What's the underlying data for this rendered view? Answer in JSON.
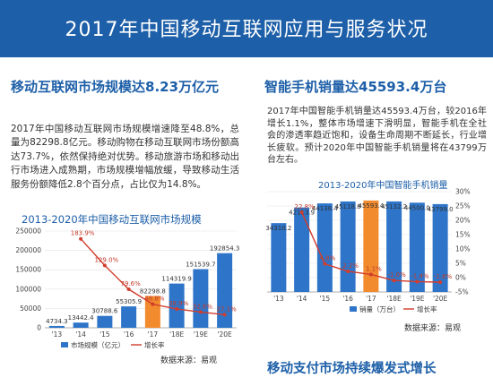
{
  "header": {
    "title": "2017年中国移动互联网应用与服务状况"
  },
  "left": {
    "heading": "移动互联网市场规模达8.23万亿元",
    "paragraph": "2017年中国移动互联网市场规模增速降至48.8%，总量为82298.8亿元。移动购物在移动互联网市场份额高达73.7%，依然保持绝对优势。移动旅游市场和移动出行市场进入成熟期，市场规模增幅放缓，导致移动生活服务份额降低2.8个百分点，占比仅为14.8%。",
    "source": "数据来源：易观"
  },
  "right": {
    "heading": "智能手机销量达45593.4万台",
    "paragraph": "2017年中国智能手机销量达45593.4万台，较2016年增长1.1%，整体市场增速下滑明显，智能手机在全社会的渗透率趋近饱和，设备生命周期不断延长，行业增长疲软。预计2020年中国智能手机销量将在43799万台左右。",
    "source": "数据来源：易观"
  },
  "bottom": {
    "heading": "移动支付市场持续爆发式增长"
  },
  "colors": {
    "brand": "#1d5fa8",
    "bar": "#2e75c9",
    "highlight": "#f28a2e",
    "line": "#d13c2c"
  },
  "chart_data": [
    {
      "type": "bar",
      "title": "2013-2020年中国移动互联网市场规模",
      "categories": [
        "'13",
        "'14",
        "'15",
        "'16",
        "'17",
        "'18E",
        "'19E",
        "'20E"
      ],
      "highlight_index": 4,
      "ylim": [
        0,
        250000
      ],
      "yticks": [
        "0",
        "50000",
        "100000",
        "150000",
        "200000",
        "250000"
      ],
      "y2lim": [
        0,
        200
      ],
      "series": [
        {
          "axis": "left",
          "values": [
            4734.3,
            13442.4,
            30788.6,
            55305.9,
            82298.8,
            114319.9,
            151539.7,
            192854.3
          ],
          "labels": [
            "4734.3",
            "13442.4",
            "30788.6",
            "55305.9",
            "82298.8",
            "114319.9",
            "151539.7",
            "192854.3"
          ]
        },
        {
          "axis": "right",
          "values": [
            null,
            183.9,
            129.0,
            79.6,
            48.8,
            38.9,
            32.6,
            27.1
          ],
          "labels": [
            "",
            "183.9%",
            "129.0%",
            "79.6%",
            "48.8%",
            "38.9%",
            "32.6%",
            "27.1%"
          ]
        }
      ],
      "legend": [
        "市场规模（亿元）",
        "增长率"
      ],
      "legend_position": "bottom"
    },
    {
      "type": "bar",
      "title": "2013-2020年中国智能手机销量",
      "categories": [
        "'13",
        "'14",
        "'15",
        "'16",
        "'17",
        "'18E",
        "'19E",
        "'20E"
      ],
      "highlight_index": 4,
      "ylim": [
        0,
        50000
      ],
      "y2lim": [
        -0.05,
        0.3
      ],
      "y2ticks": [
        "30%",
        "25%",
        "20%",
        "15%",
        "10%",
        "5%",
        "0%",
        "-5%"
      ],
      "series": [
        {
          "name": "销量（万台）",
          "axis": "left",
          "values": [
            34310.2,
            42113.9,
            44138.4,
            45118.8,
            45593.4,
            45132.2,
            44500.0,
            43799.0
          ],
          "labels": [
            "34310.2",
            "42113.9",
            "44138.4",
            "45118.8",
            "45593.4",
            "45132.2",
            "44500.0",
            "43799.0"
          ]
        },
        {
          "name": "增长率",
          "axis": "right",
          "values": [
            null,
            0.228,
            0.048,
            0.022,
            0.011,
            -0.01,
            -0.014,
            -0.016
          ],
          "labels": [
            "",
            "22.8%",
            "4.8%",
            "2.2%",
            "1.1%",
            "-1.0%",
            "-1.4%",
            "-1.6%"
          ]
        }
      ],
      "legend": [
        "销量（万台）",
        "增长率"
      ],
      "legend_position": "bottom"
    }
  ]
}
